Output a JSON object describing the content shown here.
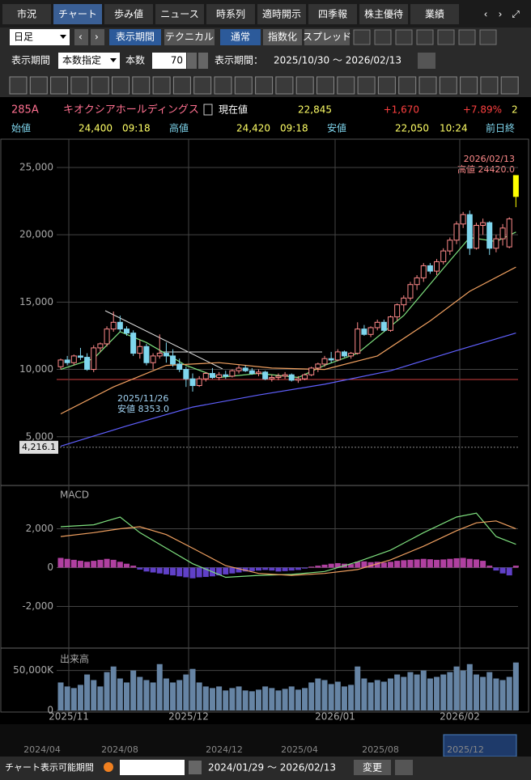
{
  "tabs": [
    "市況",
    "チャート",
    "歩み値",
    "ニュース",
    "時系列",
    "適時開示",
    "四季報",
    "株主優待",
    "業績"
  ],
  "toolbar": {
    "period_type": "日足",
    "buttons": [
      "表示期間",
      "テクニカル",
      "通常",
      "指数化",
      "スプレッド"
    ]
  },
  "period_row": {
    "label": "表示期間",
    "mode": "本数指定",
    "count_label": "本数",
    "count": "70",
    "range_label": "表示期間：",
    "range": "2025/10/30 ～ 2026/02/13"
  },
  "quote": {
    "code": "285A",
    "name": "キオクシアホールディングス",
    "price_label": "現在値",
    "price": "22,845",
    "change": "+1,670",
    "change_pct": "+7.89%",
    "cut": "2"
  },
  "ohlc_row": {
    "open_label": "始値",
    "open": "24,400",
    "open_time": "09:18",
    "high_label": "高値",
    "high": "24,420",
    "high_time": "09:18",
    "low_label": "安値",
    "low": "22,050",
    "low_time": "10:24",
    "prev_label": "前日終"
  },
  "chart": {
    "up_color": "#ff8a8a",
    "down_color": "#7fd6ee",
    "last_color": "#ffff00",
    "ylim": [
      1500,
      27100
    ],
    "yticks": [
      {
        "value": 25000,
        "label": "25,000"
      },
      {
        "value": 20000,
        "label": "20,000"
      },
      {
        "value": 15000,
        "label": "15,000"
      },
      {
        "value": 10000,
        "label": "10,000"
      },
      {
        "value": 5000,
        "label": "5,000"
      }
    ],
    "price_line": {
      "value": 4216.1,
      "label": "4,216.1"
    },
    "annotations": [
      {
        "date": "2026/02/13",
        "text": "高値 24420.0"
      },
      {
        "date": "2025/11/26",
        "text": "安値 8353.0"
      }
    ],
    "candles": [
      [
        10200,
        10800,
        10000,
        10700
      ],
      [
        10700,
        11000,
        10300,
        10500
      ],
      [
        10500,
        11100,
        10300,
        11000
      ],
      [
        11000,
        11600,
        10700,
        10900
      ],
      [
        10900,
        11200,
        9900,
        10000
      ],
      [
        10000,
        11800,
        9800,
        11600
      ],
      [
        11600,
        12000,
        11300,
        11900
      ],
      [
        11900,
        13200,
        11700,
        13000
      ],
      [
        13000,
        14300,
        12800,
        13500
      ],
      [
        13500,
        14000,
        12800,
        13000
      ],
      [
        13000,
        13200,
        12500,
        12700
      ],
      [
        12700,
        12900,
        11000,
        11200
      ],
      [
        11200,
        12200,
        10800,
        11700
      ],
      [
        11700,
        11900,
        10300,
        10500
      ],
      [
        10500,
        11200,
        10000,
        11000
      ],
      [
        11000,
        12600,
        10800,
        11200
      ],
      [
        11200,
        12000,
        10500,
        11000
      ],
      [
        11000,
        11500,
        10200,
        10400
      ],
      [
        10400,
        10800,
        9800,
        10000
      ],
      [
        10000,
        10200,
        8700,
        9300
      ],
      [
        9300,
        9700,
        8353,
        8800
      ],
      [
        8800,
        9500,
        8700,
        9300
      ],
      [
        9300,
        9800,
        9100,
        9700
      ],
      [
        9700,
        10100,
        9300,
        9400
      ],
      [
        9400,
        9800,
        9200,
        9600
      ],
      [
        9600,
        9900,
        9300,
        9500
      ],
      [
        9500,
        10000,
        9400,
        9900
      ],
      [
        9900,
        10300,
        9700,
        10100
      ],
      [
        10100,
        10300,
        9800,
        9900
      ],
      [
        9900,
        10100,
        9600,
        9700
      ],
      [
        9700,
        10000,
        9500,
        9800
      ],
      [
        9800,
        9900,
        9200,
        9300
      ],
      [
        9300,
        9600,
        9100,
        9400
      ],
      [
        9400,
        9700,
        9200,
        9500
      ],
      [
        9500,
        9800,
        9300,
        9600
      ],
      [
        9600,
        9700,
        9100,
        9200
      ],
      [
        9200,
        9500,
        9000,
        9300
      ],
      [
        9300,
        9700,
        9200,
        9600
      ],
      [
        9600,
        10200,
        9500,
        10100
      ],
      [
        10100,
        10500,
        9800,
        10400
      ],
      [
        10400,
        11000,
        10200,
        10800
      ],
      [
        10800,
        11300,
        10500,
        10700
      ],
      [
        10700,
        11500,
        10600,
        11300
      ],
      [
        11300,
        11400,
        10900,
        11000
      ],
      [
        11000,
        11300,
        10800,
        11200
      ],
      [
        11200,
        13500,
        11100,
        13000
      ],
      [
        13000,
        13300,
        12500,
        12600
      ],
      [
        12600,
        13200,
        12400,
        13100
      ],
      [
        13100,
        13700,
        12900,
        13500
      ],
      [
        13500,
        13700,
        12800,
        12900
      ],
      [
        12900,
        14000,
        12800,
        13900
      ],
      [
        13900,
        14900,
        13600,
        14800
      ],
      [
        14800,
        15500,
        14300,
        15300
      ],
      [
        15300,
        16500,
        15100,
        16300
      ],
      [
        16300,
        17000,
        15900,
        16800
      ],
      [
        16800,
        17900,
        16500,
        17700
      ],
      [
        17700,
        17900,
        17100,
        17300
      ],
      [
        17300,
        18200,
        17000,
        18000
      ],
      [
        18000,
        19000,
        17800,
        18800
      ],
      [
        18800,
        19800,
        18500,
        19600
      ],
      [
        19600,
        21000,
        19300,
        20800
      ],
      [
        20800,
        21700,
        20500,
        21500
      ],
      [
        21500,
        21800,
        18500,
        19000
      ],
      [
        19000,
        20900,
        18900,
        20700
      ],
      [
        20700,
        21200,
        20000,
        20900
      ],
      [
        20900,
        21000,
        18500,
        19000
      ],
      [
        19000,
        20000,
        18700,
        19700
      ],
      [
        19700,
        20800,
        19200,
        20500
      ],
      [
        19100,
        21300,
        19000,
        21175
      ],
      [
        24400,
        24420,
        22050,
        22845
      ]
    ],
    "ma": [
      {
        "color": "#7ee07e",
        "x": [
          0,
          5,
          9,
          13,
          19,
          24,
          30,
          36,
          40,
          45,
          52,
          58,
          62,
          66,
          69
        ],
        "values": [
          10000,
          10800,
          12800,
          12000,
          10300,
          9400,
          9700,
          9400,
          10300,
          11200,
          14000,
          17500,
          19800,
          19500,
          20200
        ]
      },
      {
        "color": "#f0a060",
        "x": [
          0,
          8,
          16,
          24,
          32,
          40,
          48,
          56,
          62,
          69
        ],
        "values": [
          6700,
          8700,
          10300,
          10500,
          10100,
          10000,
          11000,
          13600,
          15800,
          17600
        ]
      },
      {
        "color": "#6060ff",
        "x": [
          0,
          10,
          20,
          30,
          40,
          50,
          60,
          69
        ],
        "values": [
          4300,
          5800,
          7200,
          8100,
          8900,
          9900,
          11400,
          12700
        ]
      }
    ],
    "xlabels": [
      "2025/11",
      "2025/12",
      "2026/01",
      "2026/02"
    ],
    "macd": {
      "title": "MACD",
      "ylim": [
        -4100,
        4100
      ],
      "yticks": [
        {
          "value": 2000,
          "label": "2,000"
        },
        0,
        {
          "value": -2000,
          "label": "-2,000"
        }
      ],
      "pos_color": "#b040a0",
      "neg_color": "#6040c8",
      "hist": [
        500,
        450,
        400,
        350,
        300,
        350,
        400,
        450,
        400,
        300,
        200,
        100,
        -100,
        -200,
        -250,
        -300,
        -350,
        -400,
        -450,
        -500,
        -550,
        -500,
        -480,
        -450,
        -400,
        -350,
        -300,
        -250,
        -200,
        -180,
        -150,
        -120,
        -150,
        -200,
        -180,
        -150,
        -120,
        -50,
        50,
        100,
        150,
        200,
        230,
        200,
        180,
        300,
        320,
        280,
        300,
        260,
        300,
        350,
        380,
        400,
        420,
        450,
        430,
        400,
        420,
        450,
        480,
        500,
        450,
        420,
        350,
        100,
        -150,
        -300,
        -400,
        100
      ],
      "lines": [
        {
          "color": "#7ee07e",
          "x": [
            0,
            5,
            9,
            12,
            16,
            20,
            25,
            30,
            35,
            40,
            45,
            50,
            55,
            60,
            63,
            66,
            69
          ],
          "values": [
            2100,
            2200,
            2600,
            1800,
            1000,
            200,
            -500,
            -400,
            -350,
            -200,
            300,
            900,
            1800,
            2600,
            2800,
            1600,
            1200
          ]
        },
        {
          "color": "#f0a060",
          "x": [
            0,
            5,
            9,
            12,
            16,
            20,
            25,
            30,
            35,
            40,
            45,
            50,
            55,
            60,
            63,
            66,
            69
          ],
          "values": [
            1600,
            1800,
            2000,
            2100,
            1700,
            1000,
            100,
            -300,
            -400,
            -300,
            -100,
            400,
            1100,
            1900,
            2300,
            2400,
            2000
          ]
        }
      ]
    },
    "volume": {
      "title": "出来高",
      "ylim": [
        0,
        76000
      ],
      "color": "#6684a4",
      "yticks": [
        {
          "value": 50000,
          "label": "50,000K"
        },
        0
      ],
      "values": [
        35000,
        30000,
        28000,
        32000,
        45000,
        38000,
        30000,
        48000,
        55000,
        40000,
        35000,
        50000,
        42000,
        38000,
        35000,
        58000,
        40000,
        35000,
        38000,
        45000,
        52000,
        35000,
        30000,
        28000,
        30000,
        25000,
        28000,
        30000,
        25000,
        24000,
        26000,
        30000,
        28000,
        25000,
        27000,
        30000,
        26000,
        28000,
        35000,
        40000,
        38000,
        33000,
        36000,
        30000,
        32000,
        55000,
        40000,
        35000,
        38000,
        36000,
        40000,
        45000,
        42000,
        48000,
        45000,
        50000,
        40000,
        42000,
        45000,
        48000,
        55000,
        50000,
        58000,
        45000,
        42000,
        48000,
        40000,
        38000,
        42000,
        60000
      ]
    }
  },
  "navigator": {
    "labels": [
      "2024/04",
      "2024/08",
      "2024/12",
      "2025/04",
      "2025/08",
      "2025/12"
    ]
  },
  "footer": {
    "label": "チャート表示可能期間",
    "range": "2024/01/29 ～ 2026/02/13",
    "button": "変更"
  }
}
